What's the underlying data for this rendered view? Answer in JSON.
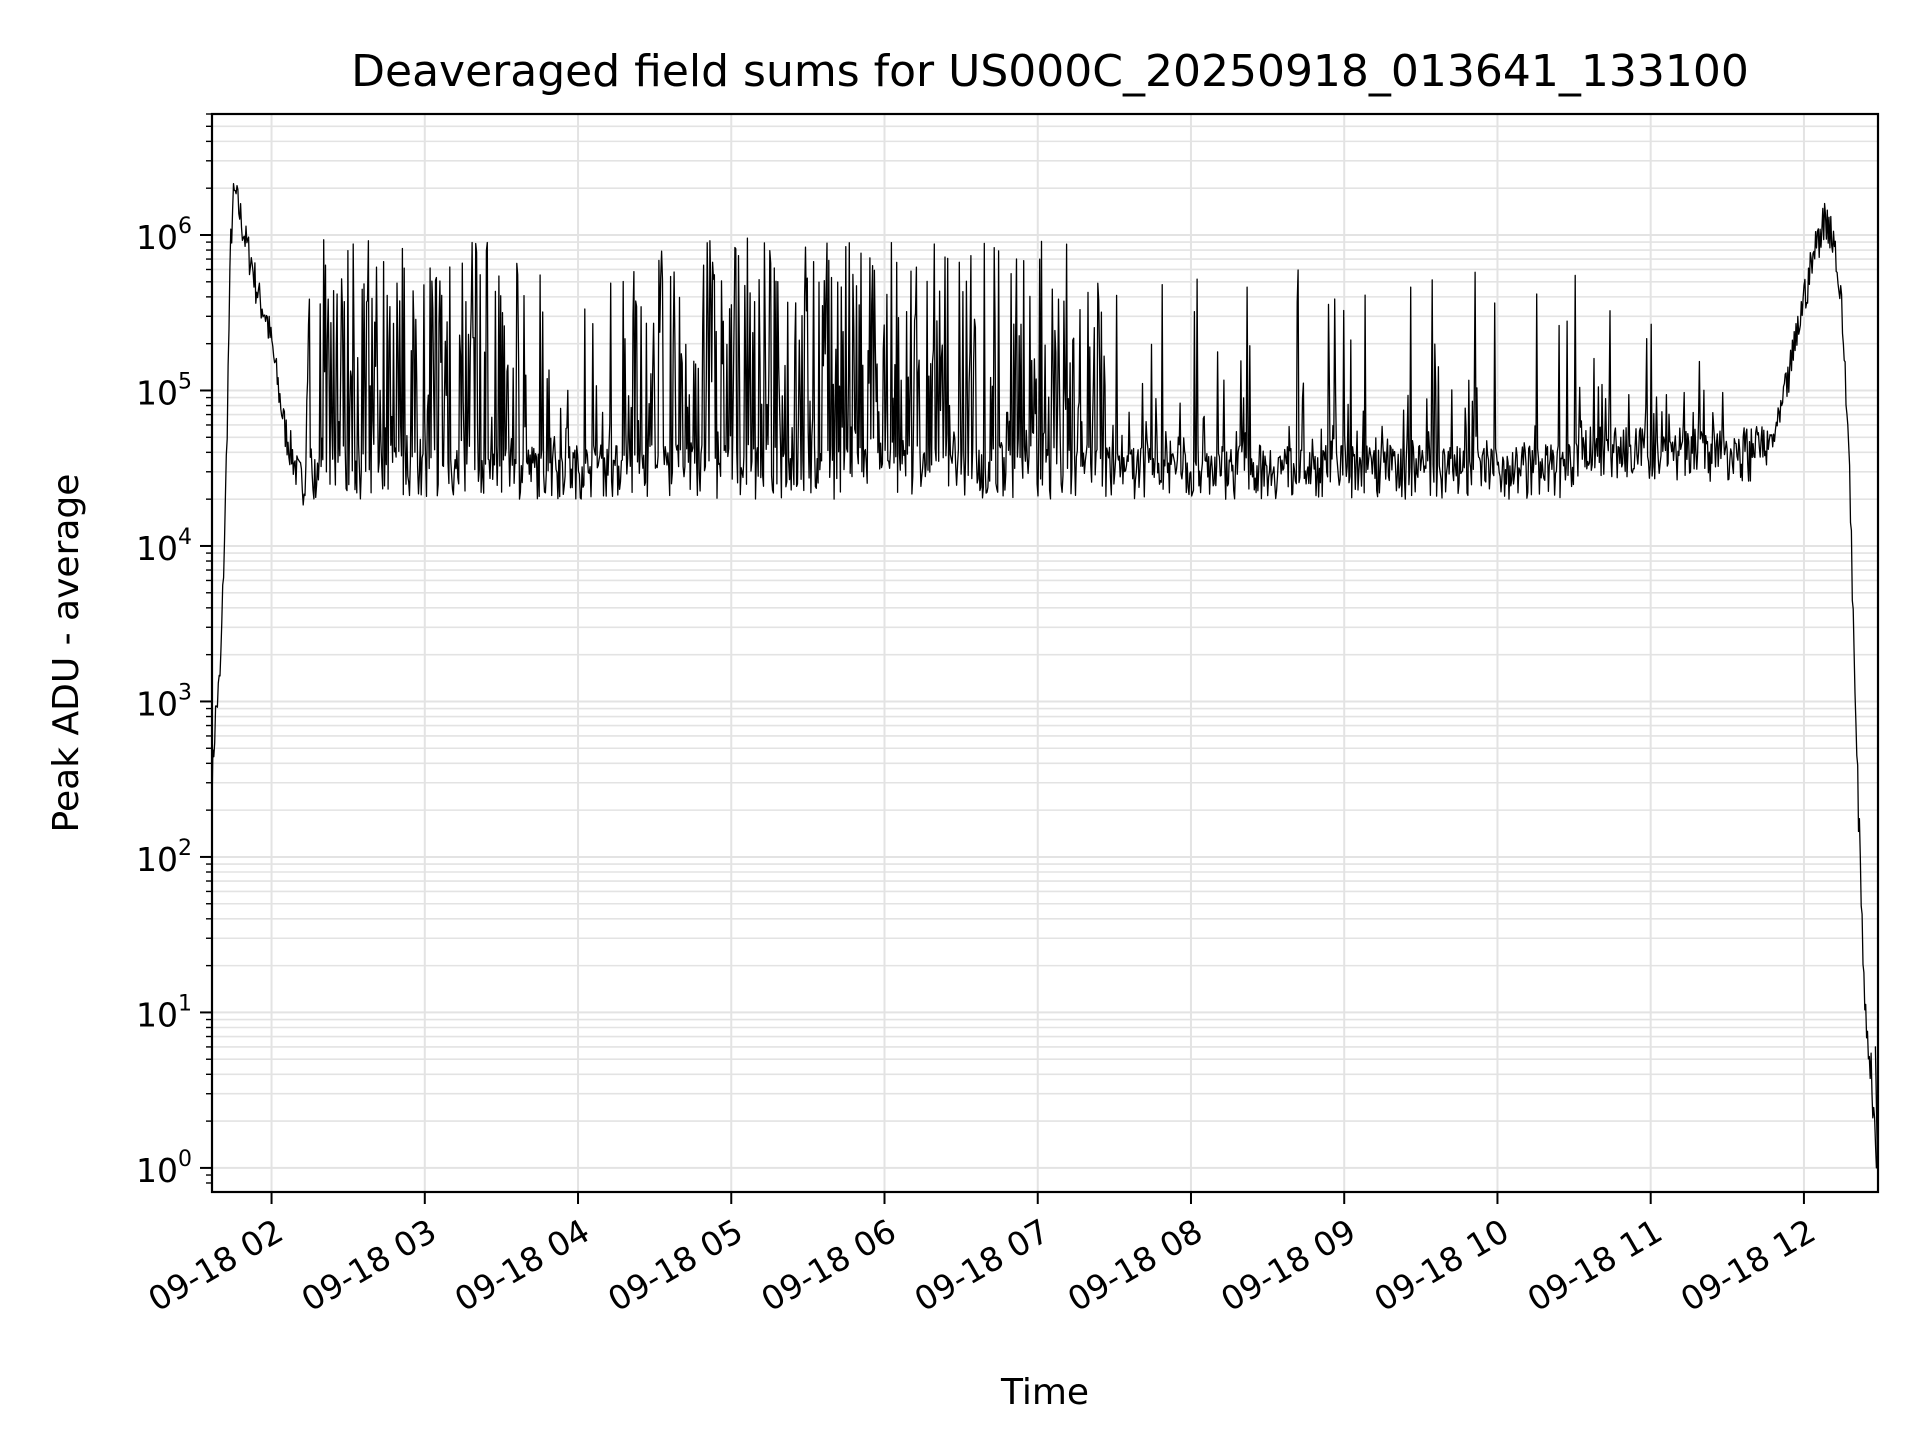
{
  "chart_data": {
    "type": "line",
    "title": "Deaveraged field sums for US000C_20250918_013641_133100",
    "xlabel": "Time",
    "ylabel": "Peak ADU - average",
    "yscale": "log",
    "ylim": [
      0.7,
      6000000
    ],
    "xlim": [
      "2025-09-18T01:36:41",
      "2025-09-18T12:29:00"
    ],
    "grid": true,
    "legend": "none",
    "line_color": "#000000",
    "grid_color": "#e3e3e3",
    "x_tick_labels": [
      "09-18 02",
      "09-18 03",
      "09-18 04",
      "09-18 05",
      "09-18 06",
      "09-18 07",
      "09-18 08",
      "09-18 09",
      "09-18 10",
      "09-18 11",
      "09-18 12"
    ],
    "x_tick_values": [
      "2025-09-18T02:00",
      "2025-09-18T03:00",
      "2025-09-18T04:00",
      "2025-09-18T05:00",
      "2025-09-18T06:00",
      "2025-09-18T07:00",
      "2025-09-18T08:00",
      "2025-09-18T09:00",
      "2025-09-18T10:00",
      "2025-09-18T11:00",
      "2025-09-18T12:00"
    ],
    "y_tick_labels": [
      {
        "base": "10",
        "exp": "0",
        "value": 1
      },
      {
        "base": "10",
        "exp": "1",
        "value": 10
      },
      {
        "base": "10",
        "exp": "2",
        "value": 100
      },
      {
        "base": "10",
        "exp": "3",
        "value": 1000
      },
      {
        "base": "10",
        "exp": "4",
        "value": 10000
      },
      {
        "base": "10",
        "exp": "5",
        "value": 100000
      },
      {
        "base": "10",
        "exp": "6",
        "value": 1000000
      }
    ],
    "series": [
      {
        "x": [
          "01:36:41",
          "01:38",
          "01:40",
          "01:42",
          "01:44",
          "01:45",
          "01:46",
          "01:48",
          "01:50",
          "01:52",
          "01:55",
          "01:58",
          "02:00",
          "02:05",
          "02:10",
          "02:13",
          "02:15",
          "02:20",
          "02:30",
          "02:40",
          "02:50",
          "03:00",
          "03:10",
          "03:20",
          "03:30",
          "03:40",
          "03:50",
          "04:00",
          "04:15",
          "04:30",
          "04:45",
          "05:00",
          "05:15",
          "05:30",
          "05:45",
          "06:00",
          "06:15",
          "06:30",
          "06:45",
          "07:00",
          "07:15",
          "07:30",
          "07:45",
          "08:00",
          "08:15",
          "08:30",
          "08:45",
          "09:00",
          "09:15",
          "09:30",
          "09:45",
          "10:00",
          "10:15",
          "10:30",
          "10:45",
          "11:00",
          "11:15",
          "11:30",
          "11:45",
          "11:50",
          "11:55",
          "12:00",
          "12:05",
          "12:08",
          "12:10",
          "12:12",
          "12:15",
          "12:18",
          "12:20",
          "12:22",
          "12:24",
          "12:26",
          "12:28",
          "12:29"
        ],
        "values": [
          300,
          800,
          1500,
          20000,
          900000,
          1700000,
          1800000,
          1300000,
          900000,
          700000,
          400000,
          300000,
          200000,
          60000,
          30000,
          25000,
          500000,
          600000,
          150000,
          80000,
          500000,
          150000,
          600000,
          100000,
          500000,
          80000,
          30000,
          28000,
          28000,
          500000,
          400000,
          300000,
          120000,
          500000,
          400000,
          300000,
          500000,
          400000,
          150000,
          80000,
          50000,
          40000,
          28000,
          26000,
          28000,
          28000,
          30000,
          30000,
          28000,
          27000,
          29000,
          28000,
          28000,
          30000,
          29000,
          30000,
          32000,
          35000,
          40000,
          60000,
          150000,
          400000,
          900000,
          1300000,
          1200000,
          900000,
          300000,
          30000,
          1000,
          100,
          10,
          5,
          1.5,
          0.8
        ],
        "spike_band": {
          "note_range": [
            "02:15",
            "11:45"
          ],
          "lower": 20000,
          "upper_active": 950000
        }
      }
    ]
  }
}
